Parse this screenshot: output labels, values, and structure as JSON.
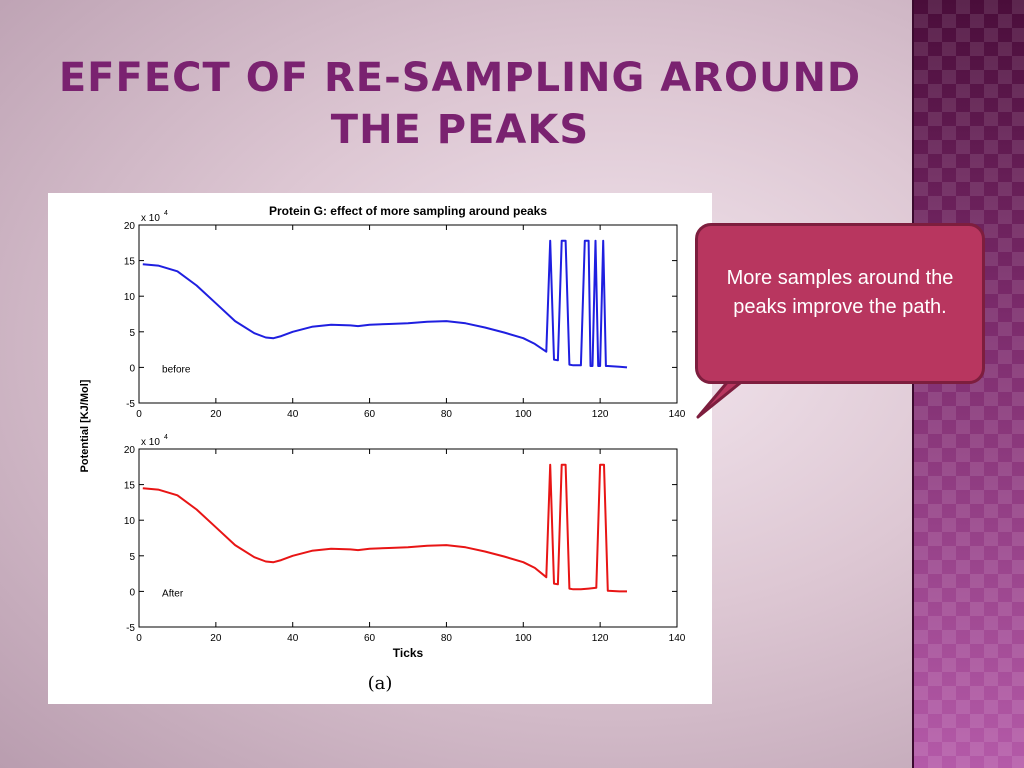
{
  "slide": {
    "title": "Effect of Re-sampling around the peaks",
    "callout_text": "More samples around the peaks improve the path.",
    "colors": {
      "title": "#7a2270",
      "callout_fill": "#b8365f",
      "accent_panel": "#5a1a4a"
    }
  },
  "chart_data": {
    "type": "line",
    "title": "Protein G: effect of more sampling around peaks",
    "ylabel": "Potential [KJ/Mol]",
    "xlabel": "Ticks",
    "caption": "(a)",
    "xlim": [
      0,
      140
    ],
    "ylim": [
      -5,
      20
    ],
    "y_multiplier": "x 10",
    "y_multiplier_exp": "4",
    "xticks": [
      0,
      20,
      40,
      60,
      80,
      100,
      120,
      140
    ],
    "yticks": [
      -5,
      0,
      5,
      10,
      15,
      20
    ],
    "panels": [
      {
        "label": "before",
        "color": "#1f1fe0",
        "series": [
          {
            "x": [
              1,
              5,
              10,
              15,
              20,
              25,
              30,
              33,
              35,
              37,
              40,
              45,
              50,
              55,
              57,
              60,
              65,
              70,
              75,
              80,
              85,
              90,
              95,
              100,
              103,
              106,
              107,
              108,
              109,
              110,
              111,
              112,
              113,
              115,
              116,
              117,
              117.5,
              118,
              118.8,
              119.5,
              120,
              120.8,
              121.5,
              122,
              125,
              127
            ],
            "y": [
              14.5,
              14.3,
              13.5,
              11.5,
              9,
              6.5,
              4.8,
              4.2,
              4.1,
              4.4,
              5,
              5.7,
              6,
              5.9,
              5.8,
              6,
              6.1,
              6.2,
              6.4,
              6.5,
              6.2,
              5.6,
              4.9,
              4.1,
              3.3,
              2.2,
              17.8,
              1.1,
              1.0,
              17.8,
              17.8,
              0.4,
              0.3,
              0.3,
              17.8,
              17.8,
              0.2,
              0.2,
              17.8,
              0.2,
              0.2,
              17.8,
              0.2,
              0.2,
              0.1,
              0.0
            ]
          }
        ]
      },
      {
        "label": "After",
        "color": "#e81515",
        "series": [
          {
            "x": [
              1,
              5,
              10,
              15,
              20,
              25,
              30,
              33,
              35,
              37,
              40,
              45,
              50,
              55,
              57,
              60,
              65,
              70,
              75,
              80,
              85,
              90,
              95,
              100,
              103,
              106,
              107,
              108,
              109,
              110,
              111,
              112,
              113,
              115,
              117,
              119,
              120,
              121,
              122,
              125,
              127
            ],
            "y": [
              14.5,
              14.3,
              13.5,
              11.5,
              9,
              6.5,
              4.8,
              4.2,
              4.1,
              4.4,
              5,
              5.7,
              6,
              5.9,
              5.8,
              6,
              6.1,
              6.2,
              6.4,
              6.5,
              6.2,
              5.6,
              4.9,
              4.1,
              3.3,
              2.0,
              17.8,
              1.1,
              1.0,
              17.8,
              17.8,
              0.4,
              0.3,
              0.3,
              0.4,
              0.5,
              17.8,
              17.8,
              0.1,
              0.0,
              0.0
            ]
          }
        ]
      }
    ]
  }
}
